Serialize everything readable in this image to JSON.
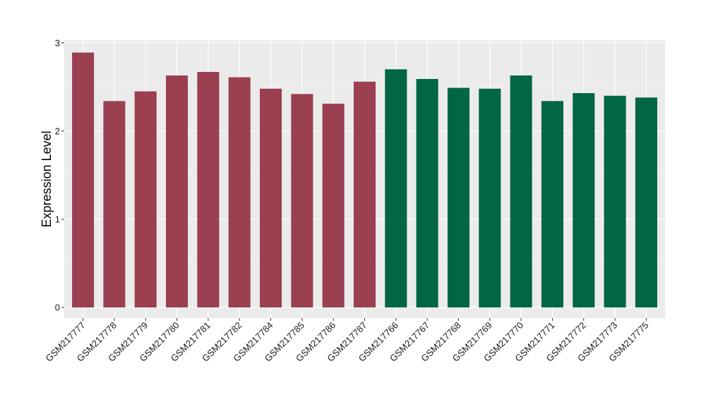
{
  "chart_data": {
    "type": "bar",
    "title": "",
    "xlabel": "",
    "ylabel": "Expression Level",
    "ylim": [
      -0.12,
      3.03
    ],
    "yticks": [
      0,
      1,
      2,
      3
    ],
    "ytick_labels": [
      "0",
      "1",
      "2",
      "3"
    ],
    "grid": true,
    "panel_background": "#ebebeb",
    "categories": [
      "GSM217777",
      "GSM217778",
      "GSM217779",
      "GSM217780",
      "GSM217781",
      "GSM217782",
      "GSM217784",
      "GSM217785",
      "GSM217786",
      "GSM217787",
      "GSM217766",
      "GSM217767",
      "GSM217768",
      "GSM217769",
      "GSM217770",
      "GSM217771",
      "GSM217772",
      "GSM217773",
      "GSM217775"
    ],
    "values": [
      2.89,
      2.34,
      2.45,
      2.63,
      2.67,
      2.61,
      2.48,
      2.42,
      2.31,
      2.56,
      2.7,
      2.59,
      2.49,
      2.48,
      2.63,
      2.34,
      2.43,
      2.4,
      2.38
    ],
    "group_colors": [
      "#9a4050",
      "#9a4050",
      "#9a4050",
      "#9a4050",
      "#9a4050",
      "#9a4050",
      "#9a4050",
      "#9a4050",
      "#9a4050",
      "#9a4050",
      "#006643",
      "#006643",
      "#006643",
      "#006643",
      "#006643",
      "#006643",
      "#006643",
      "#006643",
      "#006643"
    ]
  }
}
